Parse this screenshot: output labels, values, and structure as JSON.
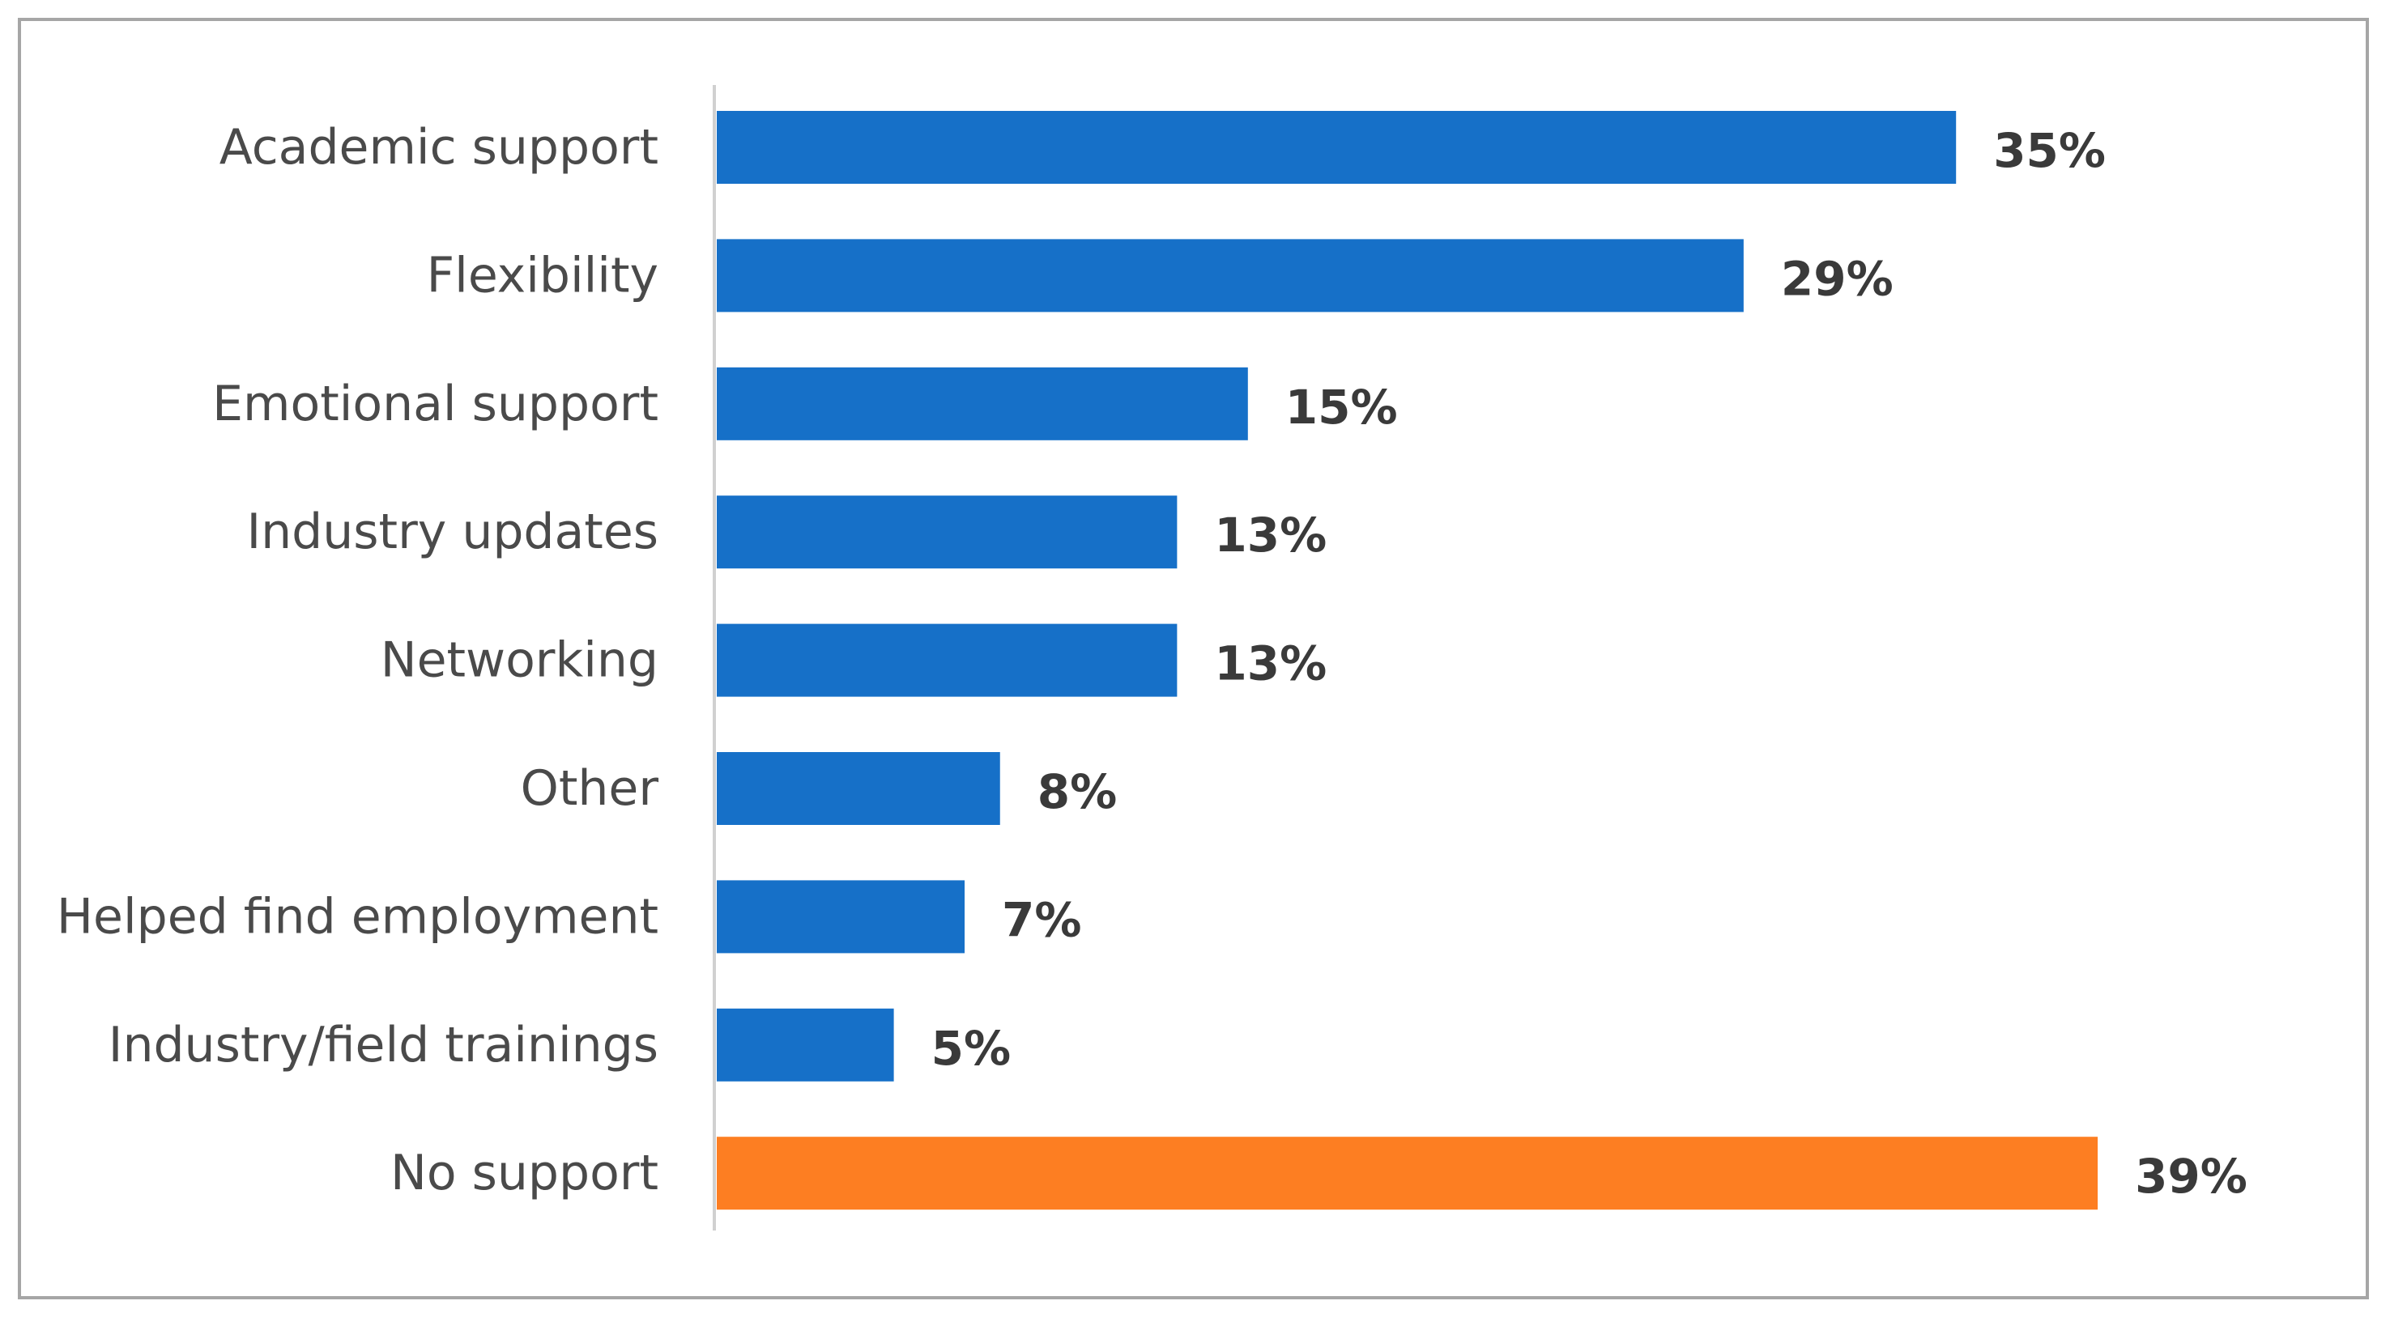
{
  "chart_data": {
    "type": "bar",
    "orientation": "horizontal",
    "title": "",
    "xlabel": "",
    "ylabel": "",
    "xlim": [
      0,
      45
    ],
    "grid": false,
    "categories": [
      "Academic support",
      "Flexibility",
      "Emotional support",
      "Industry updates",
      "Networking",
      "Other",
      "Helped find employment",
      "Industry/field trainings",
      "No support"
    ],
    "values": [
      35,
      29,
      15,
      13,
      13,
      8,
      7,
      5,
      39
    ],
    "value_labels": [
      "35%",
      "29%",
      "15%",
      "13%",
      "13%",
      "8%",
      "7%",
      "5%",
      "39%"
    ],
    "colors": [
      "#1670c8",
      "#1670c8",
      "#1670c8",
      "#1670c8",
      "#1670c8",
      "#1670c8",
      "#1670c8",
      "#1670c8",
      "#fd7e22"
    ]
  },
  "style": {
    "axis_color": "#d0d0d0",
    "frame_color": "#a6a6a6"
  }
}
